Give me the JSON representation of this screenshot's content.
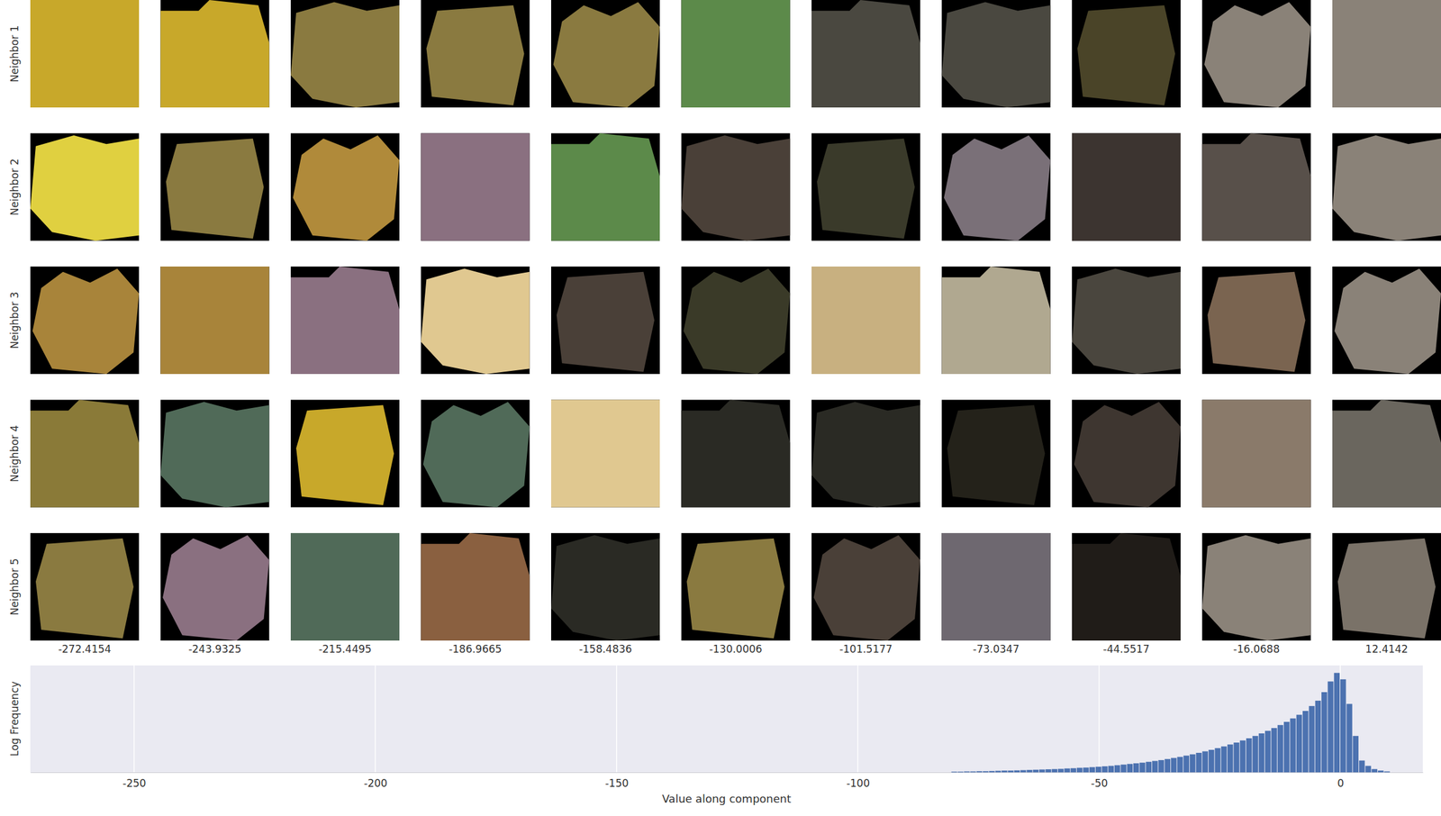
{
  "chart_data": {
    "type": "histogram",
    "xlabel": "Value along component",
    "ylabel": "Log Frequency",
    "bins": [
      -80.6,
      -79.3,
      -78.0,
      -76.7,
      -75.4,
      -74.1,
      -72.8,
      -71.5,
      -70.2,
      -68.9,
      -67.6,
      -66.3,
      -65.0,
      -63.7,
      -62.4,
      -61.1,
      -59.8,
      -58.5,
      -57.2,
      -55.9,
      -54.6,
      -53.3,
      -52.0,
      -50.7,
      -49.4,
      -48.1,
      -46.8,
      -45.5,
      -44.2,
      -42.9,
      -41.6,
      -40.3,
      -39.0,
      -37.7,
      -36.4,
      -35.1,
      -33.8,
      -32.5,
      -31.2,
      -29.9,
      -28.6,
      -27.3,
      -26.0,
      -24.7,
      -23.4,
      -22.1,
      -20.8,
      -19.5,
      -18.2,
      -16.9,
      -15.6,
      -14.3,
      -13.0,
      -11.7,
      -10.4,
      -9.1,
      -7.8,
      -6.5,
      -5.2,
      -3.9,
      -2.6,
      -1.3,
      0.0,
      1.3,
      2.6,
      3.9,
      5.2,
      6.5,
      7.8,
      9.1,
      10.4
    ],
    "values": [
      0.03,
      0.03,
      0.04,
      0.04,
      0.05,
      0.05,
      0.06,
      0.07,
      0.08,
      0.08,
      0.09,
      0.1,
      0.11,
      0.12,
      0.13,
      0.14,
      0.15,
      0.16,
      0.18,
      0.19,
      0.21,
      0.22,
      0.24,
      0.26,
      0.28,
      0.3,
      0.33,
      0.36,
      0.39,
      0.42,
      0.45,
      0.49,
      0.53,
      0.57,
      0.62,
      0.67,
      0.72,
      0.78,
      0.84,
      0.91,
      0.98,
      1.05,
      1.13,
      1.21,
      1.3,
      1.39,
      1.49,
      1.59,
      1.7,
      1.82,
      1.94,
      2.07,
      2.21,
      2.36,
      2.52,
      2.69,
      2.87,
      3.1,
      3.35,
      3.75,
      4.25,
      4.65,
      4.35,
      3.2,
      1.7,
      0.55,
      0.3,
      0.15,
      0.08,
      0.04
    ],
    "color": "#4c72b0",
    "xlim": [
      -271.5,
      17.1
    ],
    "xticks": [
      -250,
      -200,
      -150,
      -100,
      -50,
      0
    ],
    "ylim": [
      0,
      5
    ],
    "grid": true,
    "tick_labels": "x",
    "neighbors": {
      "rows": [
        "Neighbor 1",
        "Neighbor 2",
        "Neighbor 3",
        "Neighbor 4",
        "Neighbor 5"
      ],
      "columns": [
        -272.4154,
        -243.9325,
        -215.4495,
        -186.9665,
        -158.4836,
        -130.0006,
        -101.5177,
        -73.0347,
        -44.5517,
        -16.0688,
        12.4142
      ]
    }
  }
}
